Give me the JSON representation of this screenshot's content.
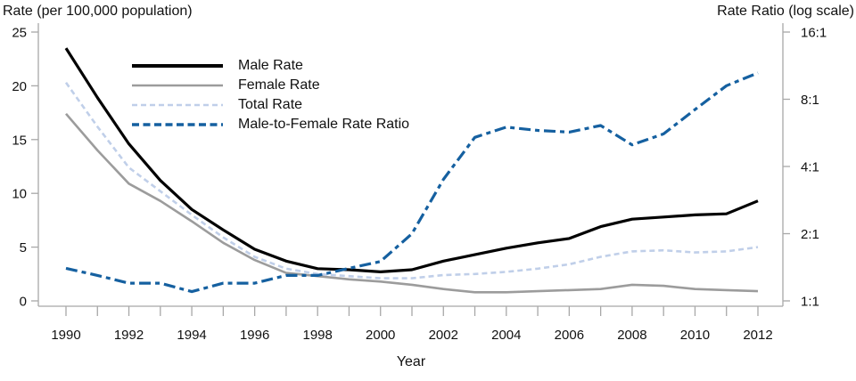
{
  "figure": {
    "left_axis_title": "Rate (per 100,000 population)",
    "right_axis_title": "Rate Ratio (log scale)",
    "x_axis_title": "Year"
  },
  "legend": {
    "items": [
      {
        "label": "Male Rate",
        "series_key": "male"
      },
      {
        "label": "Female Rate",
        "series_key": "female"
      },
      {
        "label": "Total Rate",
        "series_key": "total"
      },
      {
        "label": "Male-to-Female Rate Ratio",
        "series_key": "ratio"
      }
    ]
  },
  "colors": {
    "male": "#000000",
    "female": "#9c9c9c",
    "total": "#c0cfe9",
    "ratio": "#1560a0",
    "axis_line": "#a8a8a8",
    "tick_text": "#111111"
  },
  "chart_data": {
    "type": "line",
    "title": "",
    "xlabel": "Year",
    "ylabel_left": "Rate (per 100,000 population)",
    "ylabel_right": "Rate Ratio (log scale)",
    "x": [
      1990,
      1991,
      1992,
      1993,
      1994,
      1995,
      1996,
      1997,
      1998,
      1999,
      2000,
      2001,
      2002,
      2003,
      2004,
      2005,
      2006,
      2007,
      2008,
      2009,
      2010,
      2011,
      2012
    ],
    "series": [
      {
        "name": "Male Rate",
        "axis": "left",
        "style": "solid",
        "color_key": "male",
        "stroke_width": 3.2,
        "values": [
          23.5,
          18.9,
          14.6,
          11.2,
          8.5,
          6.6,
          4.8,
          3.7,
          3.0,
          2.9,
          2.7,
          2.9,
          3.7,
          4.3,
          4.9,
          5.4,
          5.8,
          6.9,
          7.6,
          7.8,
          8.0,
          8.1,
          9.3
        ]
      },
      {
        "name": "Female Rate",
        "axis": "left",
        "style": "solid",
        "color_key": "female",
        "stroke_width": 2.6,
        "values": [
          17.4,
          14.0,
          10.9,
          9.3,
          7.4,
          5.4,
          3.8,
          2.6,
          2.3,
          2.0,
          1.8,
          1.5,
          1.1,
          0.8,
          0.8,
          0.9,
          1.0,
          1.1,
          1.5,
          1.4,
          1.1,
          1.0,
          0.9
        ]
      },
      {
        "name": "Total Rate",
        "axis": "left",
        "style": "dashed",
        "color_key": "total",
        "stroke_width": 2.6,
        "dash": "6 4",
        "values": [
          20.3,
          16.2,
          12.4,
          10.2,
          8.0,
          5.9,
          4.1,
          3.0,
          2.5,
          2.3,
          2.1,
          2.1,
          2.4,
          2.5,
          2.7,
          3.0,
          3.4,
          4.1,
          4.6,
          4.7,
          4.5,
          4.6,
          5.0
        ]
      },
      {
        "name": "Male-to-Female Rate Ratio",
        "axis": "right",
        "style": "dash-dot",
        "color_key": "ratio",
        "stroke_width": 3.2,
        "dash": "13 5 5 5",
        "values": [
          1.4,
          1.3,
          1.2,
          1.2,
          1.1,
          1.2,
          1.2,
          1.3,
          1.3,
          1.4,
          1.5,
          2.0,
          3.5,
          5.4,
          6.0,
          5.8,
          5.7,
          6.1,
          5.0,
          5.6,
          7.2,
          9.2,
          10.5
        ]
      }
    ],
    "left_axis": {
      "ticks": [
        0,
        5,
        10,
        15,
        20,
        25
      ],
      "range": [
        0,
        25
      ],
      "grid": false
    },
    "right_axis": {
      "scale": "log2",
      "tick_values": [
        1,
        2,
        4,
        8,
        16
      ],
      "tick_labels": [
        "1:1",
        "2:1",
        "4:1",
        "8:1",
        "16:1"
      ]
    },
    "x_axis": {
      "range": [
        1990,
        2012
      ],
      "minor_tick_every": 1,
      "labeled_ticks": [
        1990,
        1992,
        1994,
        1996,
        1998,
        2000,
        2002,
        2004,
        2006,
        2008,
        2010,
        2012
      ]
    },
    "legend_position": "upper-left-inside"
  }
}
